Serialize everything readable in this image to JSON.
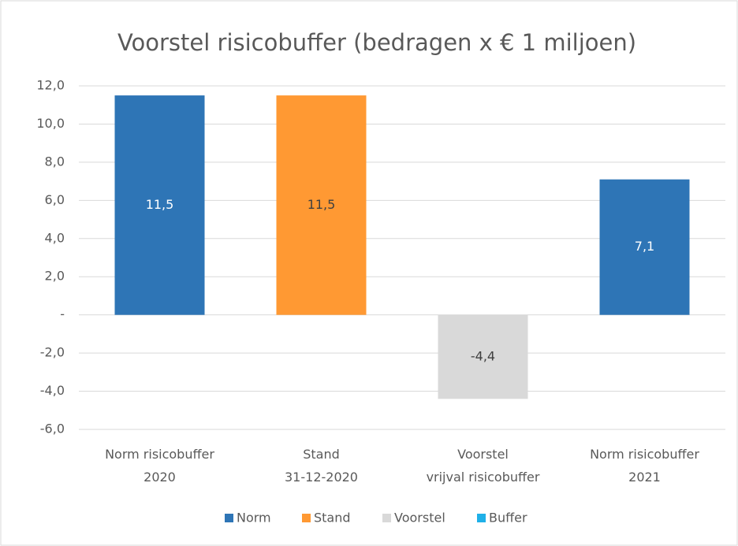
{
  "chart_data": {
    "type": "bar",
    "title": "Voorstel risicobuffer (bedragen x € 1 miljoen)",
    "categories": [
      "Norm risicobuffer\n2020",
      "Stand\n31-12-2020",
      "Voorstel\nvrijval risicobuffer",
      "Norm risicobuffer\n2021"
    ],
    "series": [
      {
        "name": "Norm",
        "color": "#2e75b6",
        "label_color": "#ffffff",
        "values": [
          11.5,
          null,
          null,
          7.1
        ],
        "value_labels": [
          "11,5",
          null,
          null,
          "7,1"
        ]
      },
      {
        "name": "Stand",
        "color": "#ff9933",
        "label_color": "#404040",
        "values": [
          null,
          11.5,
          null,
          null
        ],
        "value_labels": [
          null,
          "11,5",
          null,
          null
        ]
      },
      {
        "name": "Voorstel",
        "color": "#d9d9d9",
        "label_color": "#404040",
        "values": [
          null,
          null,
          -4.4,
          null
        ],
        "value_labels": [
          null,
          null,
          "-4,4",
          null
        ]
      },
      {
        "name": "Buffer",
        "color": "#1fb0e8",
        "label_color": "#404040",
        "values": [
          null,
          null,
          null,
          null
        ],
        "value_labels": [
          null,
          null,
          null,
          null
        ]
      }
    ],
    "ylim": [
      -6,
      12
    ],
    "yticks": [
      {
        "value": -6,
        "label": "-6,0"
      },
      {
        "value": -4,
        "label": "-4,0"
      },
      {
        "value": -2,
        "label": "-2,0"
      },
      {
        "value": 0,
        "label": "-"
      },
      {
        "value": 2,
        "label": "2,0"
      },
      {
        "value": 4,
        "label": "4,0"
      },
      {
        "value": 6,
        "label": "6,0"
      },
      {
        "value": 8,
        "label": "8,0"
      },
      {
        "value": 10,
        "label": "10,0"
      },
      {
        "value": 12,
        "label": "12,0"
      }
    ],
    "grid": true,
    "legend": "bottom"
  }
}
